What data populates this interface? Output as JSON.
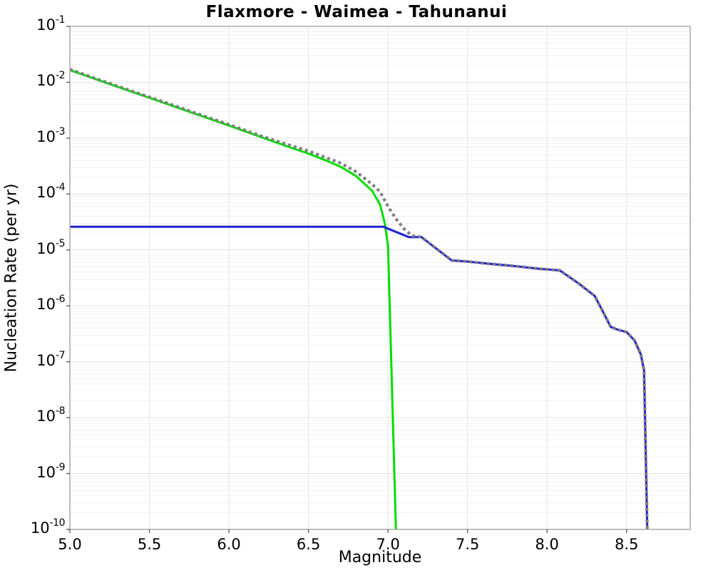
{
  "chart_data": {
    "type": "line",
    "title": "Flaxmore - Waimea - Tahunanui",
    "xlabel": "Magnitude",
    "ylabel": "Nucleation Rate (per yr)",
    "xlim": [
      5.0,
      8.9
    ],
    "y_axis_scale": "log",
    "ylim_exponents": [
      -1,
      -10
    ],
    "x_ticks": [
      5.0,
      5.5,
      6.0,
      6.5,
      7.0,
      7.5,
      8.0,
      8.5
    ],
    "x_tick_labels": [
      "5.0",
      "5.5",
      "6.0",
      "6.5",
      "7.0",
      "7.5",
      "8.0",
      "8.5"
    ],
    "y_tick_exponents": [
      -1,
      -2,
      -3,
      -4,
      -5,
      -6,
      -7,
      -8,
      -9,
      -10
    ],
    "grid": {
      "vertical_step": 0.5,
      "log_minor_horizontal_gridlines": true,
      "major_gridline_color": "#e0e0e0",
      "minor_gridline_color": "#f1f1f1",
      "vertical_gridline_color": "#e6e6e6",
      "border_color": "#a8a8a8"
    },
    "legend": "none",
    "series": [
      {
        "name": "green-solid-curve",
        "color": "#00dd00",
        "style": "solid",
        "width": 3,
        "points": [
          [
            5.0,
            0.0165
          ],
          [
            5.2,
            0.0104
          ],
          [
            5.4,
            0.0066
          ],
          [
            5.6,
            0.0042
          ],
          [
            5.8,
            0.00265
          ],
          [
            6.0,
            0.00168
          ],
          [
            6.2,
            0.00105
          ],
          [
            6.4,
            0.00066
          ],
          [
            6.5,
            0.00053
          ],
          [
            6.6,
            0.00041
          ],
          [
            6.7,
            0.00031
          ],
          [
            6.8,
            0.00021
          ],
          [
            6.9,
            0.000115
          ],
          [
            6.95,
            6.5e-05
          ],
          [
            6.98,
            3e-05
          ],
          [
            7.0,
            1.2e-05
          ],
          [
            7.05,
            1e-10
          ]
        ]
      },
      {
        "name": "blue-solid-curve",
        "color": "#2121d4",
        "style": "solid",
        "width": 3,
        "points": [
          [
            5.0,
            2.6e-05
          ],
          [
            6.97,
            2.6e-05
          ],
          [
            7.13,
            1.7e-05
          ],
          [
            7.21,
            1.7e-05
          ],
          [
            7.4,
            6.5e-06
          ],
          [
            7.5,
            6.2e-06
          ],
          [
            7.65,
            5.6e-06
          ],
          [
            7.81,
            5.1e-06
          ],
          [
            7.95,
            4.6e-06
          ],
          [
            8.08,
            4.3e-06
          ],
          [
            8.2,
            2.5e-06
          ],
          [
            8.3,
            1.5e-06
          ],
          [
            8.35,
            8e-07
          ],
          [
            8.4,
            4.2e-07
          ],
          [
            8.45,
            3.7e-07
          ],
          [
            8.5,
            3.4e-07
          ],
          [
            8.55,
            2.4e-07
          ],
          [
            8.59,
            1.35e-07
          ],
          [
            8.61,
            7e-08
          ],
          [
            8.63,
            1e-10
          ]
        ]
      },
      {
        "name": "gray-dotted-curve",
        "color": "#7f7f7f",
        "style": "dotted",
        "width": 4.2,
        "points": [
          [
            5.0,
            0.017
          ],
          [
            5.2,
            0.0107
          ],
          [
            5.4,
            0.0068
          ],
          [
            5.6,
            0.00435
          ],
          [
            5.8,
            0.00275
          ],
          [
            6.0,
            0.00175
          ],
          [
            6.2,
            0.0011
          ],
          [
            6.4,
            0.00072
          ],
          [
            6.5,
            0.00059
          ],
          [
            6.6,
            0.00046
          ],
          [
            6.7,
            0.00036
          ],
          [
            6.8,
            0.00025
          ],
          [
            6.9,
            0.00015
          ],
          [
            6.95,
            0.00011
          ],
          [
            7.0,
            6e-05
          ],
          [
            7.05,
            3.6e-05
          ],
          [
            7.1,
            2.4e-05
          ],
          [
            7.15,
            1.8e-05
          ],
          [
            7.21,
            1.7e-05
          ],
          [
            7.4,
            6.5e-06
          ],
          [
            7.5,
            6.2e-06
          ],
          [
            7.65,
            5.6e-06
          ],
          [
            7.81,
            5.1e-06
          ],
          [
            7.95,
            4.6e-06
          ],
          [
            8.08,
            4.3e-06
          ],
          [
            8.2,
            2.5e-06
          ],
          [
            8.3,
            1.5e-06
          ],
          [
            8.35,
            8e-07
          ],
          [
            8.4,
            4.2e-07
          ],
          [
            8.45,
            3.7e-07
          ],
          [
            8.5,
            3.4e-07
          ],
          [
            8.55,
            2.4e-07
          ],
          [
            8.59,
            1.35e-07
          ],
          [
            8.61,
            7e-08
          ],
          [
            8.63,
            1e-10
          ]
        ]
      }
    ]
  }
}
